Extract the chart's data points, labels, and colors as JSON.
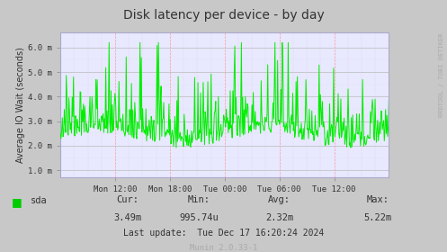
{
  "title": "Disk latency per device - by day",
  "ylabel": "Average IO Wait (seconds)",
  "xtick_labels": [
    "Mon 12:00",
    "Mon 18:00",
    "Tue 00:00",
    "Tue 06:00",
    "Tue 12:00"
  ],
  "ytick_labels": [
    "1.0 m",
    "2.0 m",
    "3.0 m",
    "4.0 m",
    "5.0 m",
    "6.0 m"
  ],
  "ytick_values": [
    0.001,
    0.002,
    0.003,
    0.004,
    0.005,
    0.006
  ],
  "ymin": 0.0007,
  "ymax": 0.0066,
  "line_color": "#00ee00",
  "plot_bg_color": "#E8E8FF",
  "grid_h_color": "#CCCCCC",
  "grid_v_color": "#FFAAAA",
  "fig_bg_color": "#C8C8C8",
  "text_color": "#333333",
  "legend_label": "sda",
  "legend_color": "#00cc00",
  "cur_label": "Cur:",
  "cur_value": "3.49m",
  "min_label": "Min:",
  "min_value": "995.74u",
  "avg_label": "Avg:",
  "avg_value": "2.32m",
  "max_label": "Max:",
  "max_value": "5.22m",
  "last_update": "Last update:  Tue Dec 17 16:20:24 2024",
  "footer": "Munin 2.0.33-1",
  "right_label": "RRDTOOL / TOBI OETIKER",
  "seed": 42,
  "n_points": 500
}
